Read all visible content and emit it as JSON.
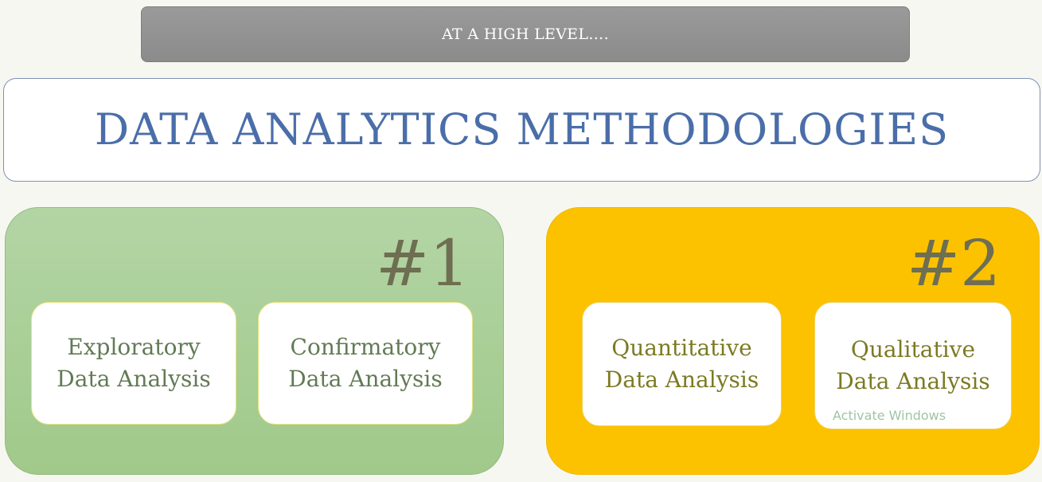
{
  "header": {
    "banner": "AT A HIGH LEVEL…."
  },
  "title": "DATA ANALYTICS METHODOLOGIES",
  "groups": [
    {
      "number": "#1",
      "cards": [
        {
          "line1": "Exploratory",
          "line2": "Data Analysis"
        },
        {
          "line1": "Confirmatory",
          "line2": "Data Analysis"
        }
      ]
    },
    {
      "number": "#2",
      "cards": [
        {
          "line1": "Quantitative",
          "line2": "Data Analysis"
        },
        {
          "line1": "Qualitative",
          "line2": "Data Analysis"
        }
      ]
    }
  ],
  "watermark": "Activate Windows",
  "colors": {
    "banner": "#8b8b8b",
    "title_text": "#4a6ea9",
    "group_1": "#a6cd92",
    "group_2": "#fcc200",
    "number_text": "#6e6e52"
  }
}
